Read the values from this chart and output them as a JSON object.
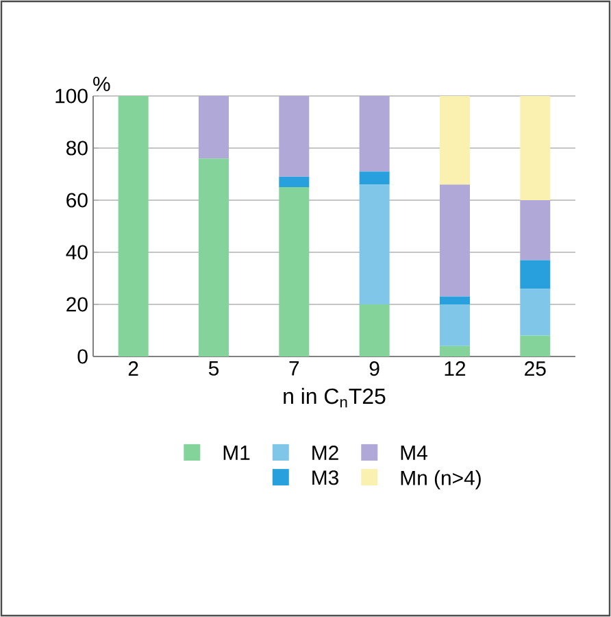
{
  "chart_data": {
    "type": "bar",
    "stacked": true,
    "ylabel": "%",
    "xlabel": "n in C$_{n}$T25",
    "categories": [
      "2",
      "5",
      "7",
      "9",
      "12",
      "25"
    ],
    "series": [
      {
        "name": "M1",
        "color": "#84d39a",
        "values": [
          100,
          76,
          65,
          20,
          4,
          8
        ]
      },
      {
        "name": "M2",
        "color": "#7fc6e8",
        "values": [
          0,
          0,
          0,
          46,
          16,
          18
        ]
      },
      {
        "name": "M3",
        "color": "#27a0dd",
        "values": [
          0,
          0,
          4,
          5,
          3,
          11
        ]
      },
      {
        "name": "M4",
        "color": "#b0a8d6",
        "values": [
          0,
          24,
          31,
          29,
          43,
          23
        ]
      },
      {
        "name": "Mn (n>4)",
        "color": "#faf0b0",
        "values": [
          0,
          0,
          0,
          0,
          34,
          40
        ]
      }
    ],
    "ylim": [
      0,
      100
    ],
    "yticks": [
      0,
      20,
      40,
      60,
      80,
      100
    ],
    "grid": "y",
    "legend": "bottom"
  }
}
